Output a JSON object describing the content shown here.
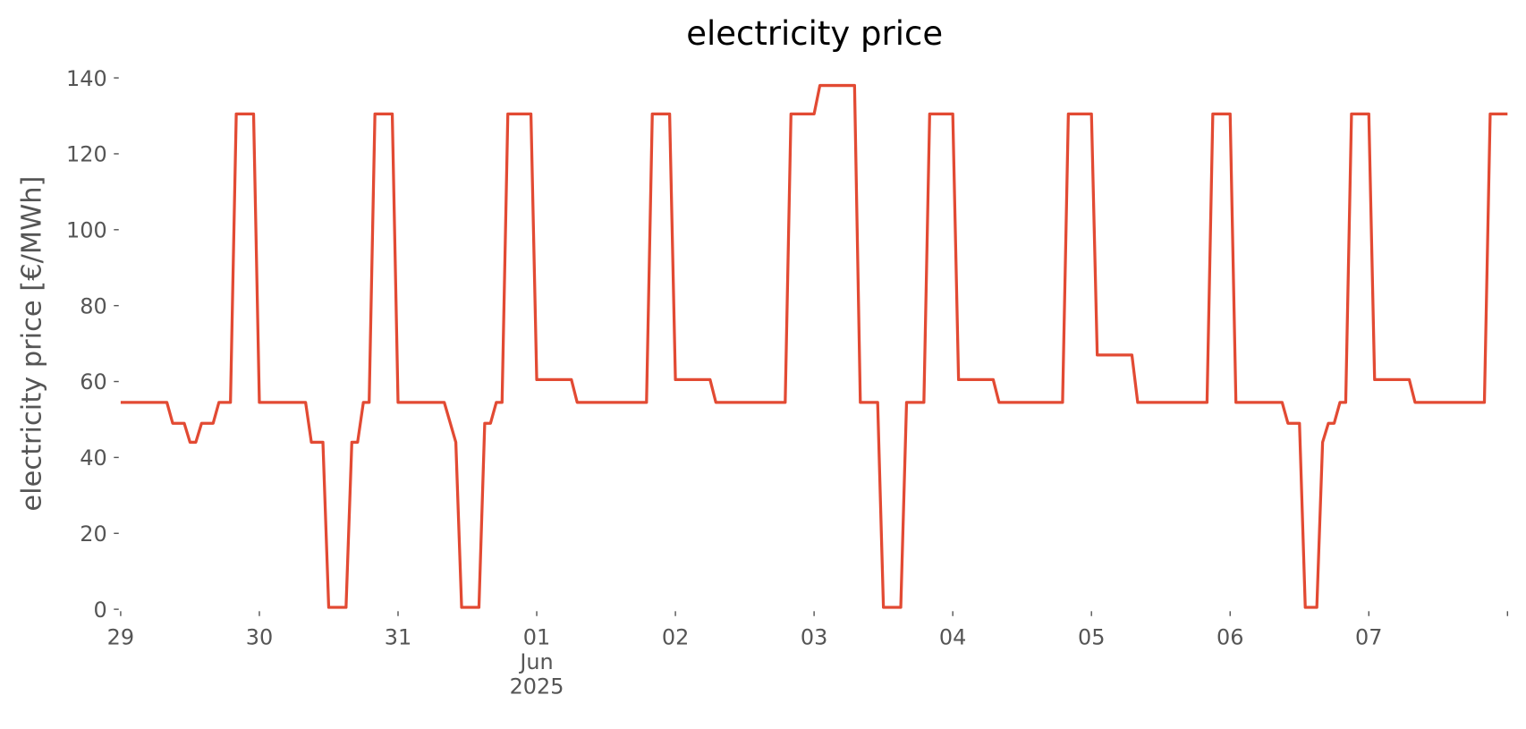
{
  "chart_data": {
    "type": "line",
    "title": "electricity price",
    "ylabel": "electricity price [€/MWh]",
    "xlim": [
      0,
      240
    ],
    "xticks": [
      {
        "value": 0,
        "label": "29"
      },
      {
        "value": 24,
        "label": "30"
      },
      {
        "value": 48,
        "label": "31"
      },
      {
        "value": 72,
        "label": "01\nJun\n2025"
      },
      {
        "value": 96,
        "label": "02"
      },
      {
        "value": 120,
        "label": "03"
      },
      {
        "value": 144,
        "label": "04"
      },
      {
        "value": 168,
        "label": "05"
      },
      {
        "value": 192,
        "label": "06"
      },
      {
        "value": 216,
        "label": "07"
      },
      {
        "value": 240,
        "label": null
      }
    ],
    "ylim": [
      0,
      140
    ],
    "yticks": [
      0,
      20,
      40,
      60,
      80,
      100,
      120,
      140
    ],
    "grid": false,
    "series": [
      {
        "name": "electricity price",
        "color": "#e24a33",
        "x": [
          0,
          8,
          9,
          11,
          12,
          13,
          14,
          16,
          17,
          19,
          20,
          23,
          24,
          32,
          33,
          35,
          36,
          39,
          40,
          41,
          42,
          43,
          44,
          47,
          48,
          56,
          58,
          59,
          62,
          63,
          64,
          65,
          66,
          67,
          71,
          72,
          78,
          79,
          91,
          92,
          95,
          96,
          102,
          103,
          115,
          116,
          120,
          121,
          127,
          128,
          131,
          132,
          135,
          136,
          139,
          140,
          144,
          145,
          151,
          152,
          163,
          164,
          168,
          169,
          175,
          176,
          188,
          189,
          192,
          193,
          201,
          202,
          204,
          205,
          207,
          208,
          209,
          210,
          211,
          212,
          213,
          216,
          217,
          223,
          224,
          236,
          237,
          240
        ],
        "values": [
          54.5,
          54.5,
          49,
          49,
          44,
          44,
          49,
          49,
          54.5,
          54.5,
          130.5,
          130.5,
          54.5,
          54.5,
          44,
          44,
          0.5,
          0.5,
          44,
          44,
          54.5,
          54.5,
          130.5,
          130.5,
          54.5,
          54.5,
          44,
          0.5,
          0.5,
          49,
          49,
          54.5,
          54.5,
          130.5,
          130.5,
          60.5,
          60.5,
          54.5,
          54.5,
          130.5,
          130.5,
          60.5,
          60.5,
          54.5,
          54.5,
          130.5,
          130.5,
          138,
          138,
          54.5,
          54.5,
          0.5,
          0.5,
          54.5,
          54.5,
          130.5,
          130.5,
          60.5,
          60.5,
          54.5,
          54.5,
          130.5,
          130.5,
          67,
          67,
          54.5,
          54.5,
          130.5,
          130.5,
          54.5,
          54.5,
          49,
          49,
          0.5,
          0.5,
          44,
          49,
          49,
          54.5,
          54.5,
          130.5,
          130.5,
          60.5,
          60.5,
          54.5,
          54.5,
          130.5,
          130.5
        ]
      }
    ]
  }
}
